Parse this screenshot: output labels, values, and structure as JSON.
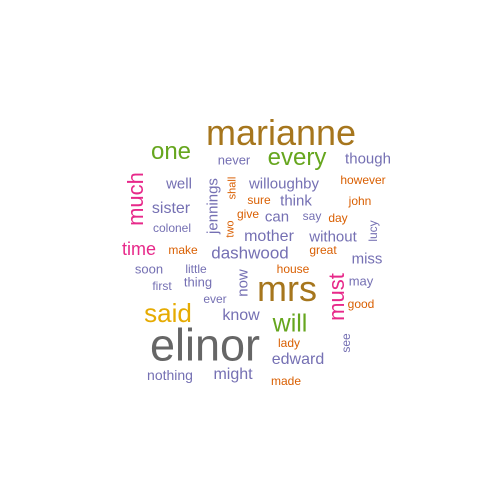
{
  "colors": {
    "gray": "#666666",
    "gold": "#a6761d",
    "green": "#66a61e",
    "purple": "#7570b3",
    "orange": "#d95f02",
    "pink": "#e7298a",
    "yellow": "#e6ab02",
    "teal": "#1b9e77"
  },
  "words": [
    {
      "text": "elinor",
      "color": "gray"
    },
    {
      "text": "marianne",
      "color": "gold"
    },
    {
      "text": "mrs",
      "color": "gold"
    },
    {
      "text": "said",
      "color": "yellow"
    },
    {
      "text": "will",
      "color": "green"
    },
    {
      "text": "every",
      "color": "green"
    },
    {
      "text": "one",
      "color": "green"
    },
    {
      "text": "much",
      "color": "pink"
    },
    {
      "text": "must",
      "color": "pink"
    },
    {
      "text": "time",
      "color": "pink"
    },
    {
      "text": "dashwood",
      "color": "purple"
    },
    {
      "text": "mother",
      "color": "purple"
    },
    {
      "text": "edward",
      "color": "purple"
    },
    {
      "text": "sister",
      "color": "purple"
    },
    {
      "text": "jennings",
      "color": "purple"
    },
    {
      "text": "know",
      "color": "purple"
    },
    {
      "text": "might",
      "color": "purple"
    },
    {
      "text": "now",
      "color": "purple"
    },
    {
      "text": "though",
      "color": "purple"
    },
    {
      "text": "well",
      "color": "purple"
    },
    {
      "text": "willoughby",
      "color": "purple"
    },
    {
      "text": "think",
      "color": "purple"
    },
    {
      "text": "can",
      "color": "purple"
    },
    {
      "text": "without",
      "color": "purple"
    },
    {
      "text": "miss",
      "color": "purple"
    },
    {
      "text": "never",
      "color": "purple"
    },
    {
      "text": "nothing",
      "color": "purple"
    },
    {
      "text": "soon",
      "color": "purple"
    },
    {
      "text": "thing",
      "color": "purple"
    },
    {
      "text": "may",
      "color": "purple"
    },
    {
      "text": "colonel",
      "color": "purple"
    },
    {
      "text": "first",
      "color": "purple"
    },
    {
      "text": "little",
      "color": "purple"
    },
    {
      "text": "ever",
      "color": "purple"
    },
    {
      "text": "say",
      "color": "purple"
    },
    {
      "text": "see",
      "color": "purple"
    },
    {
      "text": "lucy",
      "color": "purple"
    },
    {
      "text": "however",
      "color": "orange"
    },
    {
      "text": "john",
      "color": "orange"
    },
    {
      "text": "day",
      "color": "orange"
    },
    {
      "text": "great",
      "color": "orange"
    },
    {
      "text": "house",
      "color": "orange"
    },
    {
      "text": "good",
      "color": "orange"
    },
    {
      "text": "lady",
      "color": "orange"
    },
    {
      "text": "made",
      "color": "orange"
    },
    {
      "text": "make",
      "color": "orange"
    },
    {
      "text": "give",
      "color": "orange"
    },
    {
      "text": "sure",
      "color": "orange"
    },
    {
      "text": "shall",
      "color": "orange"
    },
    {
      "text": "two",
      "color": "orange"
    }
  ]
}
